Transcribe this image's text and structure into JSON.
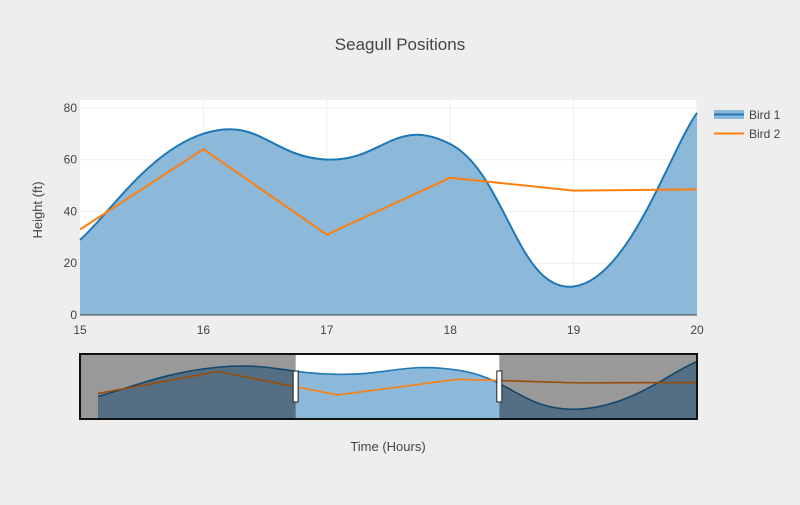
{
  "chart_data": {
    "type": "area",
    "title": "Seagull Positions",
    "xlabel": "Time (Hours)",
    "ylabel": "Height (ft)",
    "xlim": [
      15,
      20
    ],
    "ylim": [
      0,
      83
    ],
    "x_ticks": [
      15,
      16,
      17,
      18,
      19,
      20
    ],
    "y_ticks": [
      0,
      20,
      40,
      60,
      80
    ],
    "grid": true,
    "legend_position": "top-right",
    "series": [
      {
        "name": "Bird 1",
        "style": "spline-area",
        "color": "#1f77b4",
        "fill_color": "#8cb8da",
        "x": [
          15,
          16,
          17,
          18,
          19,
          20
        ],
        "y": [
          29,
          70,
          60,
          66,
          11,
          78
        ]
      },
      {
        "name": "Bird 2",
        "style": "line",
        "color": "#ff7f0e",
        "x": [
          15,
          16,
          17,
          18,
          19,
          20
        ],
        "y": [
          33,
          64,
          31,
          53,
          48,
          48.5
        ]
      }
    ],
    "range_slider": {
      "full_range": [
        14.85,
        20
      ],
      "selected_range": [
        16.65,
        18.35
      ]
    }
  }
}
